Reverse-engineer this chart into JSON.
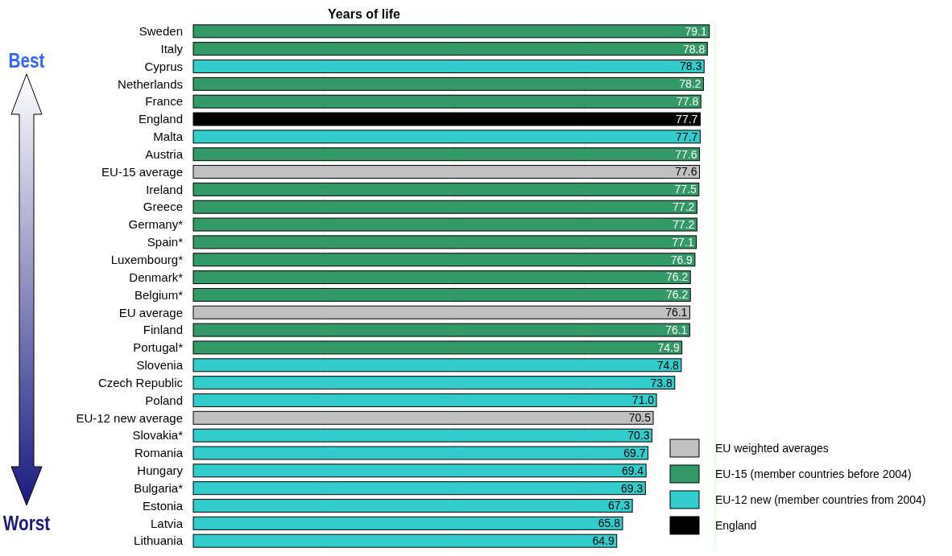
{
  "chart_data": {
    "type": "bar",
    "orientation": "horizontal",
    "title": "Years of life",
    "categories": [
      "Sweden",
      "Italy",
      "Cyprus",
      "Netherlands",
      "France",
      "England",
      "Malta",
      "Austria",
      "EU-15 average",
      "Ireland",
      "Greece",
      "Germany*",
      "Spain*",
      "Luxembourg*",
      "Denmark*",
      "Belgium*",
      "EU average",
      "Finland",
      "Portugal*",
      "Slovenia",
      "Czech Republic",
      "Poland",
      "EU-12 new average",
      "Slovakia*",
      "Romania",
      "Hungary",
      "Bulgaria*",
      "Estonia",
      "Latvia",
      "Lithuania"
    ],
    "series": [
      {
        "name": "EU weighted averages",
        "color": "#c0c0c0",
        "values": [
          null,
          null,
          null,
          null,
          null,
          null,
          null,
          null,
          77.6,
          null,
          null,
          null,
          null,
          null,
          null,
          null,
          76.1,
          null,
          null,
          null,
          null,
          null,
          70.5,
          null,
          null,
          null,
          null,
          null,
          null,
          null
        ],
        "value_labels": [
          null,
          null,
          null,
          null,
          null,
          null,
          null,
          null,
          "77.6",
          null,
          null,
          null,
          null,
          null,
          null,
          null,
          "76.1",
          null,
          null,
          null,
          null,
          null,
          "70.5",
          null,
          null,
          null,
          null,
          null,
          null,
          null
        ]
      },
      {
        "name": "EU-15 (member countries before 2004)",
        "color": "#339966",
        "values": [
          79.1,
          78.8,
          null,
          78.2,
          77.8,
          null,
          null,
          77.6,
          null,
          77.5,
          77.2,
          77.2,
          77.1,
          76.9,
          76.2,
          76.2,
          null,
          76.1,
          74.9,
          null,
          null,
          null,
          null,
          null,
          null,
          null,
          null,
          null,
          null,
          null
        ],
        "value_labels": [
          "79.1",
          "78.8",
          null,
          "78.2",
          "77.8",
          null,
          null,
          "77.6",
          null,
          "77.5",
          "77.2",
          "77.2",
          "77.1",
          "76.9",
          "76.2",
          "76.2",
          null,
          "76.1",
          "74.9",
          null,
          null,
          null,
          null,
          null,
          null,
          null,
          null,
          null,
          null,
          null
        ]
      },
      {
        "name": "EU-12 new (member countries from 2004)",
        "color": "#33cccc",
        "values": [
          null,
          null,
          78.3,
          null,
          null,
          null,
          77.7,
          null,
          null,
          null,
          null,
          null,
          null,
          null,
          null,
          null,
          null,
          null,
          null,
          74.8,
          73.8,
          71.0,
          null,
          70.3,
          69.7,
          69.4,
          69.3,
          67.3,
          65.8,
          64.9
        ],
        "value_labels": [
          null,
          null,
          "78.3",
          null,
          null,
          null,
          "77.7",
          null,
          null,
          null,
          null,
          null,
          null,
          null,
          null,
          null,
          null,
          null,
          null,
          "74.8",
          "73.8",
          "71.0",
          null,
          "70.3",
          "69.7",
          "69.4",
          "69.3",
          "67.3",
          "65.8",
          "64.9"
        ]
      },
      {
        "name": "England",
        "color": "#000000",
        "values": [
          null,
          null,
          null,
          null,
          null,
          77.7,
          null,
          null,
          null,
          null,
          null,
          null,
          null,
          null,
          null,
          null,
          null,
          null,
          null,
          null,
          null,
          null,
          null,
          null,
          null,
          null,
          null,
          null,
          null,
          null
        ],
        "value_labels": [
          null,
          null,
          null,
          null,
          null,
          "77.7",
          null,
          null,
          null,
          null,
          null,
          null,
          null,
          null,
          null,
          null,
          null,
          null,
          null,
          null,
          null,
          null,
          null,
          null,
          null,
          null,
          null,
          null,
          null,
          null
        ]
      }
    ],
    "xlim": [
      0,
      80
    ],
    "xticks": [
      {
        "value": 20,
        "label": null
      },
      {
        "value": 40,
        "label": null
      },
      {
        "value": 60,
        "label": null
      },
      {
        "value": 80,
        "label": null
      }
    ],
    "grid": "x",
    "tick_labels": "y",
    "legend": "bottom right",
    "annotations": [
      "Best",
      "Worst"
    ]
  }
}
